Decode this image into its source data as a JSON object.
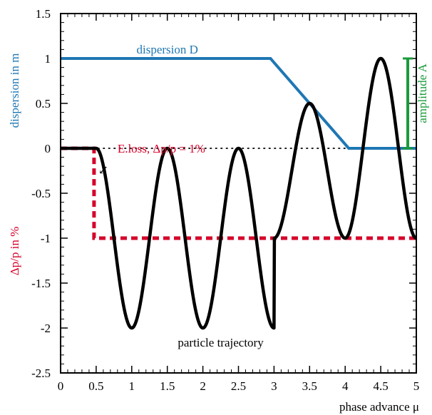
{
  "chart_data": {
    "type": "line",
    "xlabel": "phase advance μ",
    "ylabel_left_top": "dispersion  in m",
    "ylabel_left_bottom": "Δp/p in %",
    "xlim": [
      0,
      5
    ],
    "ylim": [
      -2.5,
      1.5
    ],
    "x_ticks": [
      "0",
      "0.5",
      "1",
      "1.5",
      "2",
      "2.5",
      "3",
      "3.5",
      "4",
      "4.5",
      "5"
    ],
    "y_ticks": [
      "1.5",
      "1",
      "0.5",
      "0",
      "-0.5",
      "-1",
      "-1.5",
      "-2",
      "-2.5"
    ],
    "grid": false,
    "colors": {
      "dispersion": "#1f77b4",
      "momentum": "#d6002a",
      "trajectory": "#000000",
      "amplitude": "#1a9a3a",
      "reference": "#000000"
    },
    "series": [
      {
        "name": "dispersion D",
        "style": "solid",
        "x": [
          0,
          2.95,
          4.05,
          5
        ],
        "y": [
          1,
          1,
          0,
          0
        ]
      },
      {
        "name": "Δp/p",
        "style": "dashed",
        "x": [
          0,
          0.47,
          0.47,
          5
        ],
        "y": [
          0,
          0,
          -1,
          -1
        ]
      },
      {
        "name": "particle trajectory",
        "style": "solid",
        "function": "orbit",
        "segments": [
          {
            "from": 0,
            "to": 0.5,
            "formula": "0"
          },
          {
            "from": 0.5,
            "to": 3.0,
            "formula": "-1 + cos(2π(μ-0.5))"
          },
          {
            "from": 3.0,
            "to": 4.0,
            "formula": "-0.25 + 0.75·cos(2π(μ-3.5))"
          },
          {
            "from": 4.0,
            "to": 5.0,
            "formula": "-1 * cos(2π(μ-4)) * (-1) ... oscillation between -1 and 1"
          }
        ]
      },
      {
        "name": "zero line",
        "style": "dotted",
        "x": [
          0,
          5
        ],
        "y": [
          0,
          0
        ]
      }
    ],
    "annotations": {
      "dispersion_label": "dispersion D",
      "eloss_label": "E.loss,  Δp/p = 1%",
      "eloss_arrow": "↙",
      "trajectory_label": "particle trajectory",
      "amplitude_label": "amplitude A",
      "amplitude_range": [
        0,
        1
      ]
    }
  }
}
